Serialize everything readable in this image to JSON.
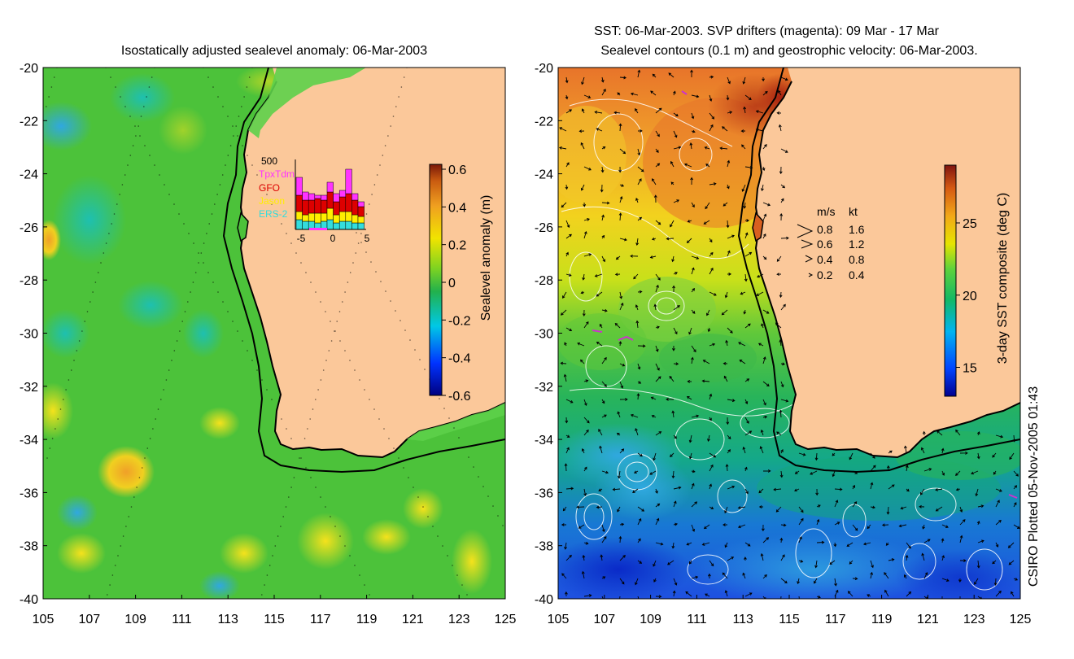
{
  "left_panel": {
    "title": "Isostatically adjusted sealevel anomaly: 06-Mar-2003",
    "y_ticks": [
      "-20",
      "-22",
      "-24",
      "-26",
      "-28",
      "-30",
      "-32",
      "-34",
      "-36",
      "-38",
      "-40"
    ],
    "x_ticks": [
      "105",
      "107",
      "109",
      "111",
      "113",
      "115",
      "117",
      "119",
      "121",
      "123",
      "125"
    ],
    "colorbar": {
      "label": "Sealevel anomaly (m)",
      "ticks": [
        "0.6",
        "0.4",
        "0.2",
        "0",
        "-0.2",
        "-0.4",
        "-0.6"
      ],
      "range": [
        -0.6,
        0.6
      ]
    },
    "inset": {
      "max_label": "500",
      "legend": [
        {
          "name": "TpxTdm",
          "color": "#ff33ff"
        },
        {
          "name": "GFO",
          "color": "#dd0000"
        },
        {
          "name": "Jason",
          "color": "#ffee00"
        },
        {
          "name": "ERS-2",
          "color": "#33dddd"
        }
      ],
      "x_ticks": [
        "-5",
        "0",
        "5"
      ]
    }
  },
  "right_panel": {
    "title_line1": "SST: 06-Mar-2003. SVP drifters (magenta): 09 Mar - 17 Mar",
    "title_line2": "Sealevel contours (0.1 m) and geostrophic velocity: 06-Mar-2003.",
    "y_ticks": [
      "-20",
      "-22",
      "-24",
      "-26",
      "-28",
      "-30",
      "-32",
      "-34",
      "-36",
      "-38",
      "-40"
    ],
    "x_ticks": [
      "105",
      "107",
      "109",
      "111",
      "113",
      "115",
      "117",
      "119",
      "121",
      "123",
      "125"
    ],
    "colorbar": {
      "label": "3-day SST composite (deg C)",
      "ticks": [
        "25",
        "20",
        "15"
      ],
      "range": [
        13,
        29
      ]
    },
    "velocity_key": {
      "header_ms": "m/s",
      "header_kt": "kt",
      "rows": [
        {
          "ms": "0.8",
          "kt": "1.6"
        },
        {
          "ms": "0.6",
          "kt": "1.2"
        },
        {
          "ms": "0.4",
          "kt": "0.8"
        },
        {
          "ms": "0.2",
          "kt": "0.4"
        }
      ]
    }
  },
  "credit": "CSIRO Plotted 05-Nov-2005 01:43",
  "colors": {
    "land": "#fbc89a",
    "ocean_sla": "#4cc23a",
    "coast": "#000000",
    "contour": "#ffffff",
    "drifter": "#cc33cc"
  }
}
